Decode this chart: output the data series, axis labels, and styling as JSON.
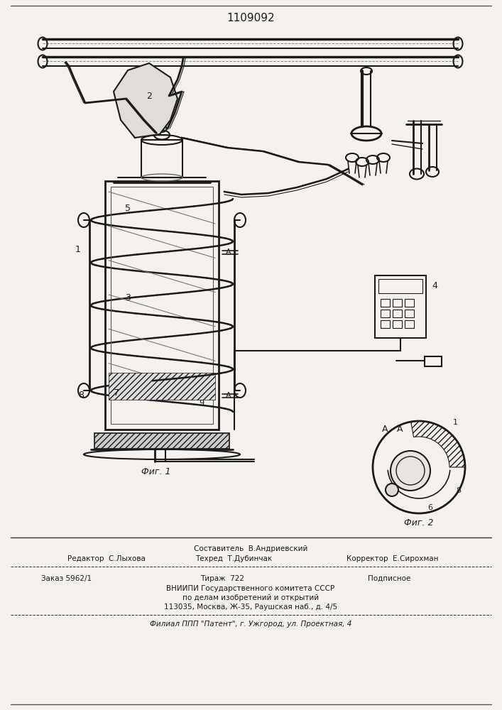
{
  "title": "1109092",
  "title_fontsize": 11,
  "bg_color": "#f5f2ee",
  "fig1_label": "Фиг. 1",
  "fig2_label": "Фиг. 2",
  "section_label": "А - А"
}
